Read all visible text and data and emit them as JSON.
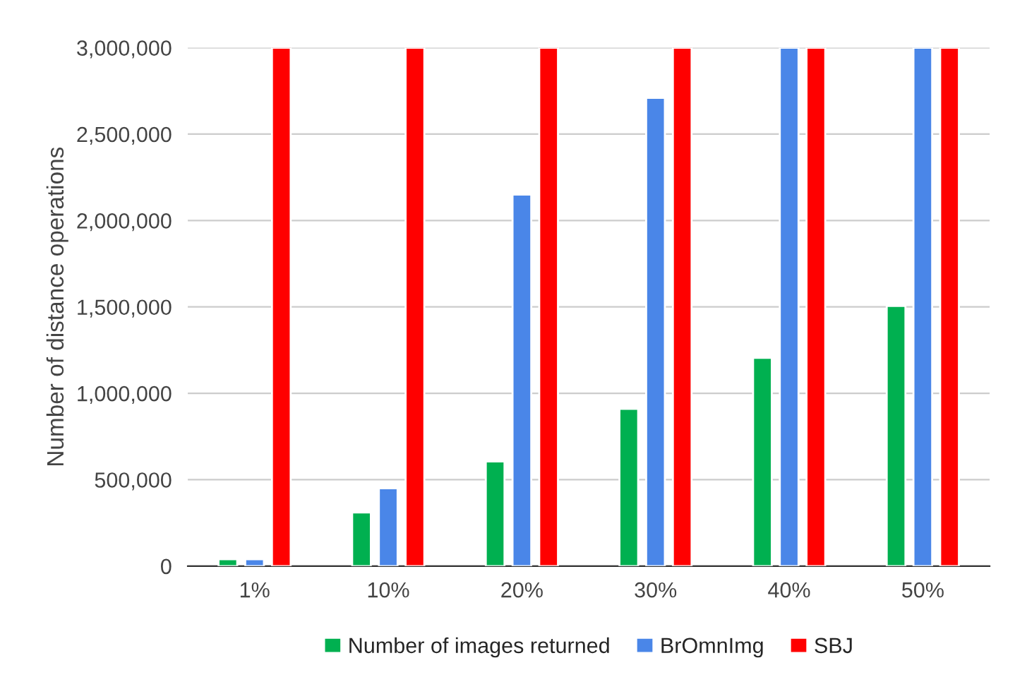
{
  "chart_data": {
    "type": "bar",
    "ylabel": "Number of distance operations",
    "categories": [
      "1%",
      "10%",
      "20%",
      "30%",
      "40%",
      "50%"
    ],
    "series": [
      {
        "name": "Number of images returned",
        "color": "#00b050",
        "values": [
          40000,
          310000,
          605000,
          910000,
          1205000,
          1505000
        ]
      },
      {
        "name": "BrOmnImg",
        "color": "#4a86e8",
        "values": [
          40000,
          450000,
          2150000,
          2710000,
          3000000,
          3000000
        ]
      },
      {
        "name": "SBJ",
        "color": "#ff0000",
        "values": [
          3000000,
          3000000,
          3000000,
          3000000,
          3000000,
          3000000
        ]
      }
    ],
    "ylim": [
      0,
      3000000
    ],
    "yticks": [
      {
        "value": 0,
        "label": "0"
      },
      {
        "value": 500000,
        "label": "500,000"
      },
      {
        "value": 1000000,
        "label": "1,000,000"
      },
      {
        "value": 1500000,
        "label": "1,500,000"
      },
      {
        "value": 2000000,
        "label": "2,000,000"
      },
      {
        "value": 2500000,
        "label": "2,500,000"
      },
      {
        "value": 3000000,
        "label": "3,000,000"
      }
    ],
    "grid": "y",
    "legend": "bottom"
  }
}
